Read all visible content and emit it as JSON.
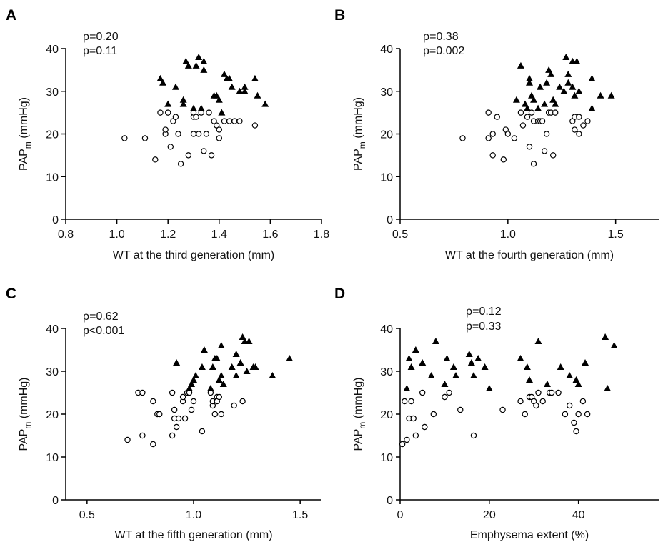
{
  "chart_data": [
    {
      "type": "scatter",
      "panel_label": "A",
      "annotations": [
        "ρ=0.20",
        "p=0.11"
      ],
      "xlabel": "WT at the third generation (mm)",
      "ylabel_main": "PAP",
      "ylabel_sub": "m",
      "ylabel_unit": " (mmHg)",
      "xlim": [
        0.8,
        1.8
      ],
      "ylim": [
        0,
        40
      ],
      "xticks": [
        0.8,
        1.0,
        1.2,
        1.4,
        1.6,
        1.8
      ],
      "xtick_labels": [
        "0.8",
        "1.0",
        "1.2",
        "1.4",
        "1.6",
        "1.8"
      ],
      "yticks": [
        0,
        10,
        20,
        30,
        40
      ],
      "ytick_labels": [
        "0",
        "10",
        "20",
        "30",
        "40"
      ],
      "series": [
        {
          "marker": "open-circle",
          "points": [
            [
              1.03,
              19
            ],
            [
              1.11,
              19
            ],
            [
              1.15,
              14
            ],
            [
              1.17,
              25
            ],
            [
              1.19,
              20
            ],
            [
              1.19,
              21
            ],
            [
              1.2,
              25
            ],
            [
              1.21,
              17
            ],
            [
              1.22,
              23
            ],
            [
              1.23,
              24
            ],
            [
              1.24,
              20
            ],
            [
              1.25,
              13
            ],
            [
              1.28,
              15
            ],
            [
              1.3,
              20
            ],
            [
              1.3,
              24
            ],
            [
              1.3,
              25
            ],
            [
              1.31,
              24
            ],
            [
              1.32,
              20
            ],
            [
              1.33,
              25
            ],
            [
              1.34,
              16
            ],
            [
              1.35,
              20
            ],
            [
              1.36,
              25
            ],
            [
              1.37,
              15
            ],
            [
              1.38,
              23
            ],
            [
              1.39,
              22
            ],
            [
              1.4,
              21
            ],
            [
              1.4,
              19
            ],
            [
              1.42,
              23
            ],
            [
              1.44,
              23
            ],
            [
              1.46,
              23
            ],
            [
              1.48,
              23
            ],
            [
              1.54,
              22
            ]
          ]
        },
        {
          "marker": "filled-triangle",
          "points": [
            [
              1.17,
              33
            ],
            [
              1.18,
              32
            ],
            [
              1.2,
              27
            ],
            [
              1.23,
              31
            ],
            [
              1.26,
              28
            ],
            [
              1.26,
              27
            ],
            [
              1.27,
              37
            ],
            [
              1.28,
              36
            ],
            [
              1.3,
              26
            ],
            [
              1.31,
              36
            ],
            [
              1.32,
              38
            ],
            [
              1.33,
              26
            ],
            [
              1.34,
              37
            ],
            [
              1.34,
              35
            ],
            [
              1.38,
              29
            ],
            [
              1.39,
              29
            ],
            [
              1.4,
              28
            ],
            [
              1.41,
              25
            ],
            [
              1.42,
              34
            ],
            [
              1.43,
              33
            ],
            [
              1.44,
              33
            ],
            [
              1.45,
              31
            ],
            [
              1.48,
              30
            ],
            [
              1.5,
              31
            ],
            [
              1.5,
              30
            ],
            [
              1.54,
              33
            ],
            [
              1.55,
              29
            ],
            [
              1.58,
              27
            ]
          ]
        }
      ]
    },
    {
      "type": "scatter",
      "panel_label": "B",
      "annotations": [
        "ρ=0.38",
        "p=0.002"
      ],
      "xlabel": "WT at the fourth generation (mm)",
      "ylabel_main": "PAP",
      "ylabel_sub": "m",
      "ylabel_unit": " (mmHg)",
      "xlim": [
        0.5,
        1.7
      ],
      "ylim": [
        0,
        40
      ],
      "xticks": [
        0.5,
        1.0,
        1.5
      ],
      "xtick_labels": [
        "0.5",
        "1.0",
        "1.5"
      ],
      "yticks": [
        0,
        10,
        20,
        30,
        40
      ],
      "ytick_labels": [
        "0",
        "10",
        "20",
        "30",
        "40"
      ],
      "series": [
        {
          "marker": "open-circle",
          "points": [
            [
              0.79,
              19
            ],
            [
              0.91,
              19
            ],
            [
              0.91,
              25
            ],
            [
              0.93,
              15
            ],
            [
              0.93,
              20
            ],
            [
              0.95,
              24
            ],
            [
              0.98,
              14
            ],
            [
              0.99,
              21
            ],
            [
              1.0,
              20
            ],
            [
              1.03,
              19
            ],
            [
              1.06,
              25
            ],
            [
              1.07,
              22
            ],
            [
              1.09,
              24
            ],
            [
              1.1,
              17
            ],
            [
              1.11,
              25
            ],
            [
              1.12,
              13
            ],
            [
              1.12,
              23
            ],
            [
              1.14,
              23
            ],
            [
              1.15,
              23
            ],
            [
              1.16,
              23
            ],
            [
              1.17,
              16
            ],
            [
              1.18,
              20
            ],
            [
              1.19,
              25
            ],
            [
              1.2,
              25
            ],
            [
              1.21,
              15
            ],
            [
              1.22,
              25
            ],
            [
              1.3,
              23
            ],
            [
              1.31,
              24
            ],
            [
              1.31,
              21
            ],
            [
              1.33,
              24
            ],
            [
              1.33,
              20
            ],
            [
              1.35,
              22
            ],
            [
              1.37,
              23
            ]
          ]
        },
        {
          "marker": "filled-triangle",
          "points": [
            [
              1.04,
              28
            ],
            [
              1.06,
              36
            ],
            [
              1.08,
              27
            ],
            [
              1.09,
              26
            ],
            [
              1.1,
              33
            ],
            [
              1.1,
              32
            ],
            [
              1.11,
              29
            ],
            [
              1.12,
              28
            ],
            [
              1.14,
              26
            ],
            [
              1.15,
              31
            ],
            [
              1.17,
              27
            ],
            [
              1.18,
              32
            ],
            [
              1.19,
              35
            ],
            [
              1.2,
              34
            ],
            [
              1.21,
              28
            ],
            [
              1.22,
              27
            ],
            [
              1.24,
              31
            ],
            [
              1.26,
              30
            ],
            [
              1.27,
              38
            ],
            [
              1.28,
              32
            ],
            [
              1.28,
              34
            ],
            [
              1.3,
              37
            ],
            [
              1.3,
              31
            ],
            [
              1.31,
              29
            ],
            [
              1.32,
              37
            ],
            [
              1.33,
              30
            ],
            [
              1.39,
              26
            ],
            [
              1.39,
              33
            ],
            [
              1.43,
              29
            ],
            [
              1.48,
              29
            ]
          ]
        }
      ]
    },
    {
      "type": "scatter",
      "panel_label": "C",
      "annotations": [
        "ρ=0.62",
        "p<0.001"
      ],
      "xlabel": "WT at the fifth generation (mm)",
      "ylabel_main": "PAP",
      "ylabel_sub": "m",
      "ylabel_unit": " (mmHg)",
      "xlim": [
        0.4,
        1.6
      ],
      "ylim": [
        0,
        40
      ],
      "xticks": [
        0.5,
        1.0,
        1.5
      ],
      "xtick_labels": [
        "0.5",
        "1.0",
        "1.5"
      ],
      "yticks": [
        0,
        10,
        20,
        30,
        40
      ],
      "ytick_labels": [
        "0",
        "10",
        "20",
        "30",
        "40"
      ],
      "series": [
        {
          "marker": "open-circle",
          "points": [
            [
              0.69,
              14
            ],
            [
              0.74,
              25
            ],
            [
              0.76,
              25
            ],
            [
              0.76,
              15
            ],
            [
              0.81,
              13
            ],
            [
              0.81,
              23
            ],
            [
              0.83,
              20
            ],
            [
              0.84,
              20
            ],
            [
              0.9,
              25
            ],
            [
              0.9,
              15
            ],
            [
              0.91,
              21
            ],
            [
              0.91,
              19
            ],
            [
              0.92,
              17
            ],
            [
              0.93,
              19
            ],
            [
              0.95,
              23
            ],
            [
              0.95,
              24
            ],
            [
              0.96,
              19
            ],
            [
              0.97,
              25
            ],
            [
              0.98,
              25
            ],
            [
              0.99,
              21
            ],
            [
              1.0,
              23
            ],
            [
              1.04,
              16
            ],
            [
              1.08,
              25
            ],
            [
              1.09,
              22
            ],
            [
              1.09,
              23
            ],
            [
              1.1,
              20
            ],
            [
              1.11,
              24
            ],
            [
              1.11,
              23
            ],
            [
              1.12,
              24
            ],
            [
              1.13,
              20
            ],
            [
              1.19,
              22
            ],
            [
              1.23,
              23
            ]
          ]
        },
        {
          "marker": "filled-triangle",
          "points": [
            [
              0.92,
              32
            ],
            [
              0.98,
              26
            ],
            [
              0.99,
              27
            ],
            [
              1.0,
              28
            ],
            [
              1.01,
              29
            ],
            [
              1.04,
              31
            ],
            [
              1.05,
              35
            ],
            [
              1.08,
              26
            ],
            [
              1.09,
              31
            ],
            [
              1.1,
              33
            ],
            [
              1.11,
              33
            ],
            [
              1.12,
              28
            ],
            [
              1.13,
              36
            ],
            [
              1.13,
              29
            ],
            [
              1.14,
              27
            ],
            [
              1.18,
              31
            ],
            [
              1.2,
              29
            ],
            [
              1.2,
              34
            ],
            [
              1.22,
              32
            ],
            [
              1.23,
              38
            ],
            [
              1.24,
              37
            ],
            [
              1.25,
              30
            ],
            [
              1.26,
              37
            ],
            [
              1.28,
              31
            ],
            [
              1.29,
              31
            ],
            [
              1.37,
              29
            ],
            [
              1.45,
              33
            ]
          ]
        }
      ]
    },
    {
      "type": "scatter",
      "panel_label": "D",
      "annotations": [
        "ρ=0.12",
        "p=0.33"
      ],
      "xlabel": "Emphysema extent (%)",
      "ylabel_main": "PAP",
      "ylabel_sub": "m",
      "ylabel_unit": " (mmHg)",
      "xlim": [
        0,
        58
      ],
      "ylim": [
        0,
        40
      ],
      "xticks": [
        0,
        20,
        40
      ],
      "xtick_labels": [
        "0",
        "20",
        "40"
      ],
      "yticks": [
        0,
        10,
        20,
        30,
        40
      ],
      "ytick_labels": [
        "0",
        "10",
        "20",
        "30",
        "40"
      ],
      "series": [
        {
          "marker": "open-circle",
          "points": [
            [
              0.5,
              13
            ],
            [
              1,
              23
            ],
            [
              1.5,
              14
            ],
            [
              2,
              19
            ],
            [
              2.5,
              23
            ],
            [
              3,
              19
            ],
            [
              3.5,
              15
            ],
            [
              5,
              25
            ],
            [
              5.5,
              17
            ],
            [
              7.5,
              20
            ],
            [
              10,
              24
            ],
            [
              11,
              25
            ],
            [
              13.5,
              21
            ],
            [
              16.5,
              15
            ],
            [
              23,
              21
            ],
            [
              27,
              23
            ],
            [
              28,
              20
            ],
            [
              29,
              24
            ],
            [
              29.5,
              24
            ],
            [
              30,
              23
            ],
            [
              30.5,
              22
            ],
            [
              31,
              25
            ],
            [
              32,
              23
            ],
            [
              33.5,
              25
            ],
            [
              34,
              25
            ],
            [
              35.5,
              25
            ],
            [
              37,
              20
            ],
            [
              38,
              22
            ],
            [
              39,
              18
            ],
            [
              39.5,
              16
            ],
            [
              40,
              20
            ],
            [
              41,
              23
            ],
            [
              42,
              20
            ]
          ]
        },
        {
          "marker": "filled-triangle",
          "points": [
            [
              1.5,
              26
            ],
            [
              2,
              33
            ],
            [
              2.5,
              31
            ],
            [
              3.5,
              35
            ],
            [
              5,
              32
            ],
            [
              7,
              29
            ],
            [
              8,
              37
            ],
            [
              10,
              27
            ],
            [
              10.5,
              33
            ],
            [
              12,
              31
            ],
            [
              12.5,
              29
            ],
            [
              15.5,
              34
            ],
            [
              16,
              32
            ],
            [
              16.5,
              29
            ],
            [
              17.5,
              33
            ],
            [
              19,
              31
            ],
            [
              20,
              26
            ],
            [
              27,
              33
            ],
            [
              28.5,
              31
            ],
            [
              29,
              28
            ],
            [
              31,
              37
            ],
            [
              33,
              27
            ],
            [
              36,
              31
            ],
            [
              38,
              29
            ],
            [
              39.5,
              28
            ],
            [
              40,
              27
            ],
            [
              41.5,
              32
            ],
            [
              46,
              38
            ],
            [
              46.5,
              26
            ],
            [
              48,
              36
            ]
          ]
        }
      ]
    }
  ]
}
